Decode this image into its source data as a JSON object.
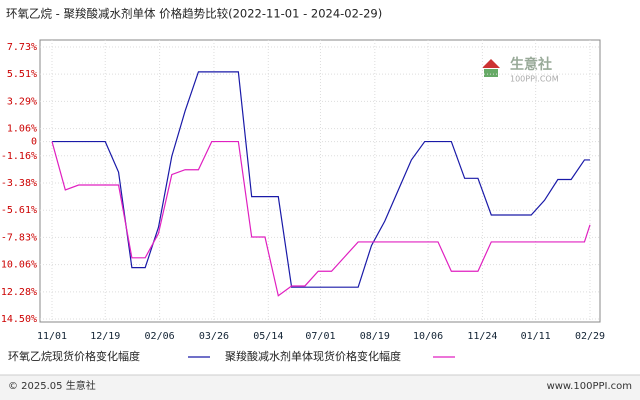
{
  "chart_data": {
    "type": "line",
    "title": "环氧乙烷 - 聚羧酸减水剂单体 价格趋势比较(2022-11-01 - 2024-02-29)",
    "x": [
      0,
      12,
      24,
      36,
      48,
      60,
      72,
      84,
      96,
      108,
      120,
      132,
      144,
      156,
      168,
      180,
      192,
      204,
      216,
      228,
      240,
      252,
      264,
      276,
      288,
      300,
      312,
      324,
      336,
      348,
      360,
      372,
      384,
      396,
      408,
      420,
      432,
      444,
      456,
      468,
      480,
      485
    ],
    "xlim": [
      0,
      485
    ],
    "xticks": [
      {
        "value": 0,
        "label": "11/01"
      },
      {
        "value": 48,
        "label": "12/19"
      },
      {
        "value": 97,
        "label": "02/06"
      },
      {
        "value": 146,
        "label": "03/26"
      },
      {
        "value": 195,
        "label": "05/14"
      },
      {
        "value": 242,
        "label": "07/01"
      },
      {
        "value": 291,
        "label": "08/19"
      },
      {
        "value": 339,
        "label": "10/06"
      },
      {
        "value": 388,
        "label": "11/24"
      },
      {
        "value": 436,
        "label": "01/11"
      },
      {
        "value": 485,
        "label": "02/29"
      }
    ],
    "ylim": [
      -14.5,
      7.73
    ],
    "yticks": [
      {
        "value": 7.73,
        "label": "7.73%"
      },
      {
        "value": 5.51,
        "label": "5.51%"
      },
      {
        "value": 3.29,
        "label": "3.29%"
      },
      {
        "value": 1.06,
        "label": "1.06%"
      },
      0,
      {
        "value": -1.16,
        "label": "-1.16%"
      },
      {
        "value": -3.38,
        "label": "-3.38%"
      },
      {
        "value": -5.61,
        "label": "-5.61%"
      },
      {
        "value": -7.83,
        "label": "-7.83%"
      },
      {
        "value": -10.06,
        "label": "-10.06%"
      },
      {
        "value": -12.28,
        "label": "-12.28%"
      },
      {
        "value": -14.5,
        "label": "-14.50%"
      }
    ],
    "grid": true,
    "series": [
      {
        "name": "环氧乙烷现货价格变化幅度",
        "color": "#1a1aa8",
        "values": [
          0,
          0,
          0,
          0,
          0,
          -2.5,
          -10.3,
          -10.3,
          -7.0,
          -1.2,
          2.5,
          5.7,
          5.7,
          5.7,
          5.7,
          -4.5,
          -4.5,
          -4.5,
          -11.9,
          -11.9,
          -11.9,
          -11.9,
          -11.9,
          -11.9,
          -8.5,
          -6.5,
          -4.0,
          -1.5,
          0,
          0,
          0,
          -3.0,
          -3.0,
          -6.0,
          -6.0,
          -6.0,
          -6.0,
          -4.8,
          -3.1,
          -3.1,
          -1.5,
          -1.5
        ]
      },
      {
        "name": "聚羧酸减水剂单体现货价格变化幅度",
        "color": "#e020c0",
        "values": [
          0,
          -3.95,
          -3.55,
          -3.55,
          -3.55,
          -3.55,
          -9.5,
          -9.5,
          -7.5,
          -2.7,
          -2.3,
          -2.3,
          0,
          0,
          0,
          -7.8,
          -7.8,
          -12.6,
          -11.8,
          -11.8,
          -10.6,
          -10.6,
          -9.4,
          -8.2,
          -8.2,
          -8.2,
          -8.2,
          -8.2,
          -8.2,
          -8.2,
          -10.6,
          -10.6,
          -10.6,
          -8.2,
          -8.2,
          -8.2,
          -8.2,
          -8.2,
          -8.2,
          -8.2,
          -8.2,
          -6.8
        ]
      }
    ]
  },
  "watermark": {
    "name": "生意社",
    "site": "100PPI.COM"
  },
  "footer": {
    "left": "© 2025.05 生意社",
    "right": "www.100PPI.com"
  }
}
